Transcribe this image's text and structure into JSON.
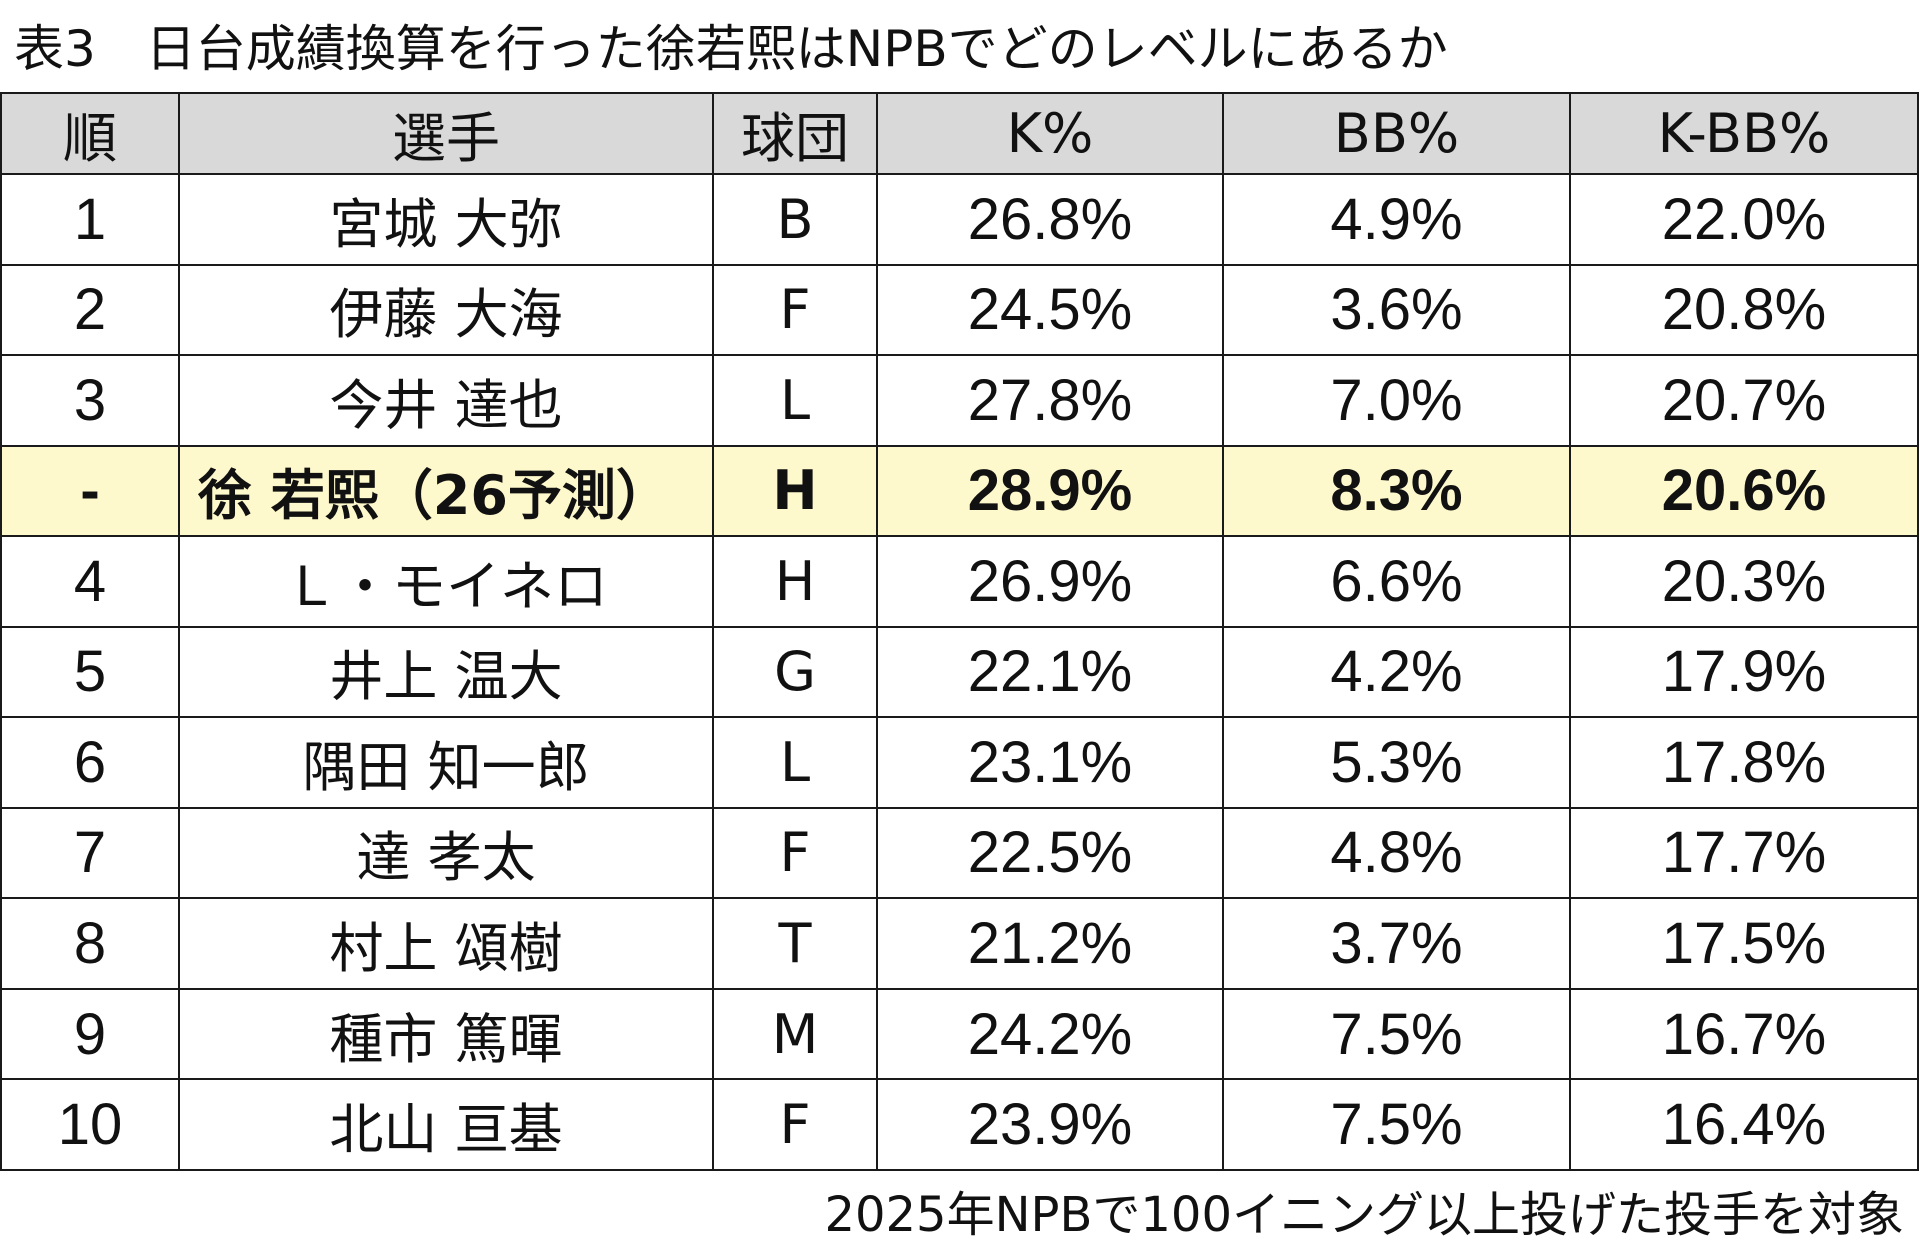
{
  "title": "表3　日台成績換算を行った徐若熙はNPBでどのレベルにあるか",
  "footnote": "2025年NPBで100イニング以上投げた投手を対象",
  "chart_data": {
    "type": "table",
    "title": "表3　日台成績換算を行った徐若熙はNPBでどのレベルにあるか",
    "columns": [
      "順",
      "選手",
      "球団",
      "K%",
      "BB%",
      "K-BB%"
    ],
    "rows": [
      {
        "rank": "1",
        "player": "宮城 大弥",
        "team": "B",
        "k": "26.8%",
        "bb": "4.9%",
        "kbb": "22.0%"
      },
      {
        "rank": "2",
        "player": "伊藤 大海",
        "team": "F",
        "k": "24.5%",
        "bb": "3.6%",
        "kbb": "20.8%"
      },
      {
        "rank": "3",
        "player": "今井 達也",
        "team": "L",
        "k": "27.8%",
        "bb": "7.0%",
        "kbb": "20.7%"
      },
      {
        "rank": "-",
        "player": "徐 若熙（26予測）",
        "team": "H",
        "k": "28.9%",
        "bb": "8.3%",
        "kbb": "20.6%",
        "highlight": true
      },
      {
        "rank": "4",
        "player": "Ｌ・モイネロ",
        "team": "H",
        "k": "26.9%",
        "bb": "6.6%",
        "kbb": "20.3%"
      },
      {
        "rank": "5",
        "player": "井上 温大",
        "team": "G",
        "k": "22.1%",
        "bb": "4.2%",
        "kbb": "17.9%"
      },
      {
        "rank": "6",
        "player": "隅田 知一郎",
        "team": "L",
        "k": "23.1%",
        "bb": "5.3%",
        "kbb": "17.8%"
      },
      {
        "rank": "7",
        "player": "達 孝太",
        "team": "F",
        "k": "22.5%",
        "bb": "4.8%",
        "kbb": "17.7%"
      },
      {
        "rank": "8",
        "player": "村上 頌樹",
        "team": "T",
        "k": "21.2%",
        "bb": "3.7%",
        "kbb": "17.5%"
      },
      {
        "rank": "9",
        "player": "種市 篤暉",
        "team": "M",
        "k": "24.2%",
        "bb": "7.5%",
        "kbb": "16.7%"
      },
      {
        "rank": "10",
        "player": "北山 亘基",
        "team": "F",
        "k": "23.9%",
        "bb": "7.5%",
        "kbb": "16.4%"
      }
    ],
    "colors": {
      "header_background": "#d9d9d9",
      "highlight_background": "#fef9cc",
      "border": "#1a1a1a"
    }
  }
}
